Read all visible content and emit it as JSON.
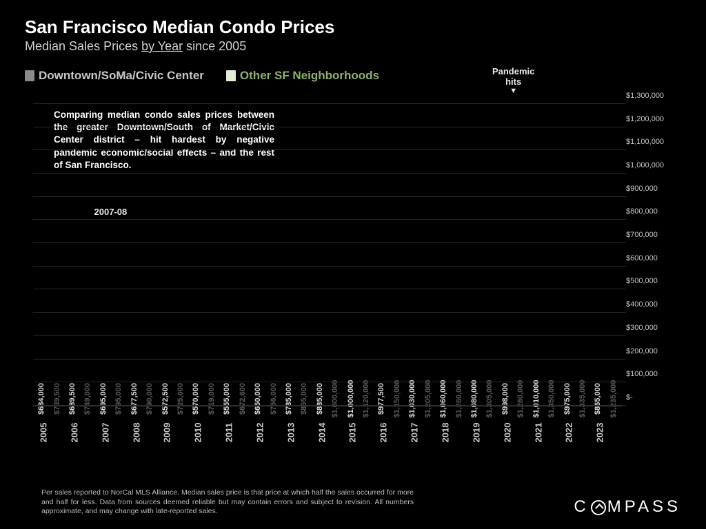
{
  "title": "San Francisco Median Condo Prices",
  "subtitle_prefix": "Median Sales Prices ",
  "subtitle_underlined": "by Year",
  "subtitle_suffix": " since 2005",
  "legend": {
    "series_a": {
      "label": "Downtown/SoMa/Civic Center",
      "color": "#8a8a8a",
      "text_color": "#c8c8c8"
    },
    "series_b": {
      "label": "Other SF Neighborhoods",
      "color": "#e1eed6",
      "text_color": "#8fb06f"
    }
  },
  "description": "Comparing median condo sales prices between the greater Downtown/South of Market/Civic Center district – hit hardest by negative pandemic economic/social effects – and the rest of San Francisco.",
  "annotations": {
    "a1": {
      "text": "2007-08",
      "year_index": 2
    },
    "a2": {
      "text": "Pandemic\nhits",
      "year_index": 15
    }
  },
  "chart": {
    "type": "bar",
    "ymin": 0,
    "ymax": 1350000,
    "ytick_positions": [
      0,
      100000,
      200000,
      300000,
      400000,
      500000,
      600000,
      700000,
      800000,
      900000,
      1000000,
      1100000,
      1200000,
      1300000
    ],
    "ytick_labels": [
      "$-",
      "$100,000",
      "$200,000",
      "$300,000",
      "$400,000",
      "$500,000",
      "$600,000",
      "$700,000",
      "$800,000",
      "$900,000",
      "$1,000,000",
      "$1,100,000",
      "$1,200,000",
      "$1,300,000"
    ],
    "years": [
      "2005",
      "2006",
      "2007",
      "2008",
      "2009",
      "2010",
      "2011",
      "2012",
      "2013",
      "2014",
      "2015",
      "2016",
      "2017",
      "2018",
      "2019",
      "2020",
      "2021",
      "2022",
      "2023"
    ],
    "series_a_values": [
      684000,
      689500,
      695000,
      677500,
      572500,
      570000,
      555000,
      650000,
      785000,
      885000,
      1000000,
      977500,
      1030000,
      1060000,
      1080000,
      998000,
      1010000,
      975000,
      865000
    ],
    "series_a_labels": [
      "$684,000",
      "$689,500",
      "$695,000",
      "$677,500",
      "$572,500",
      "$570,000",
      "$555,000",
      "$650,000",
      "$785,000",
      "$885,000",
      "$1,000,000",
      "$977,500",
      "$1,030,000",
      "$1,060,000",
      "$1,080,000",
      "$998,000",
      "$1,010,000",
      "$975,000",
      "$865,000"
    ],
    "series_b_values": [
      739500,
      749000,
      795000,
      790000,
      725000,
      719000,
      672600,
      756000,
      855000,
      1000000,
      1120000,
      1150000,
      1205000,
      1260000,
      1305000,
      1280000,
      1350000,
      1335000,
      1235000
    ],
    "series_b_labels": [
      "$739,500",
      "$749,000",
      "$795,000",
      "$790,000",
      "$725,000",
      "$719,000",
      "$672,600",
      "$756,000",
      "$855,000",
      "$1,000,000",
      "$1,120,000",
      "$1,150,000",
      "$1,205,000",
      "$1,260,000",
      "$1,305,000",
      "$1,280,000",
      "$1,350,000",
      "$1,335,000",
      "$1,235,000"
    ],
    "bar_label_color_a": "#d8d8d8",
    "bar_label_color_b": "#5a5a5a",
    "background_color": "#000000",
    "grid_color": "#262626"
  },
  "footnote": "Per sales reported to NorCal MLS Alliance. Median sales price is that price at which half the sales occurred for more and half for less. Data from sources deemed reliable but may contain errors and subject to revision. All numbers approximate, and may change with late-reported sales.",
  "logo_text": "C MPASS"
}
